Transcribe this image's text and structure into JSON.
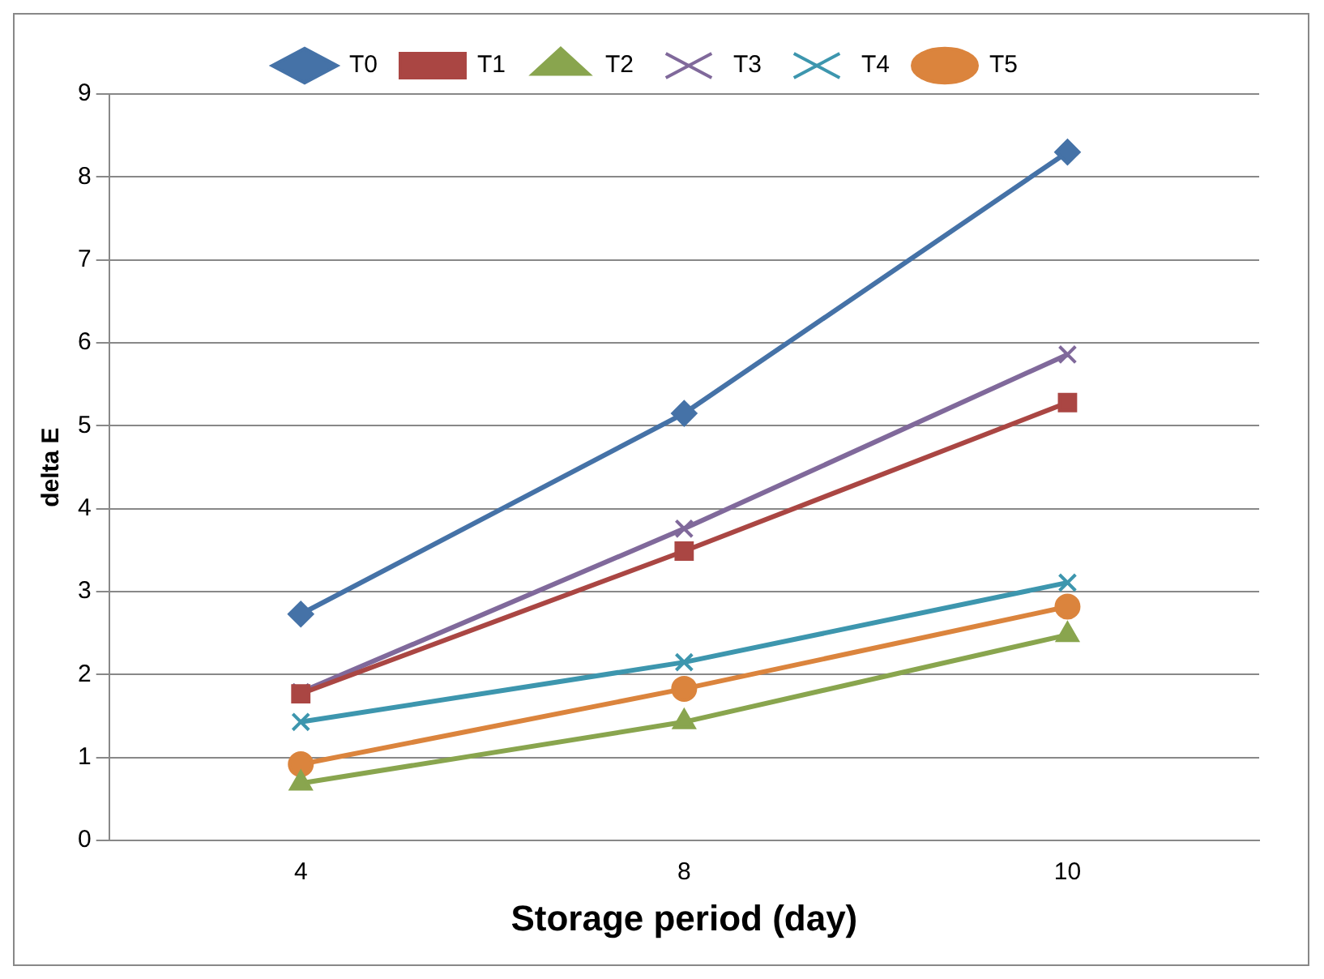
{
  "chart_data": {
    "type": "line",
    "xlabel": "Storage period (day)",
    "ylabel": "delta E",
    "categories": [
      "4",
      "8",
      "10"
    ],
    "series": [
      {
        "name": "T0",
        "color": "#4572a7",
        "marker": "diamond",
        "values": [
          2.73,
          5.15,
          8.3
        ]
      },
      {
        "name": "T1",
        "color": "#aa4643",
        "marker": "square",
        "values": [
          1.77,
          3.49,
          5.28
        ]
      },
      {
        "name": "T2",
        "color": "#89a54e",
        "marker": "triangle",
        "values": [
          0.69,
          1.43,
          2.48
        ]
      },
      {
        "name": "T3",
        "color": "#80699b",
        "marker": "cross",
        "values": [
          1.79,
          3.76,
          5.86
        ]
      },
      {
        "name": "T4",
        "color": "#3d96ae",
        "marker": "cross",
        "values": [
          1.43,
          2.15,
          3.11
        ]
      },
      {
        "name": "T5",
        "color": "#db843d",
        "marker": "circle",
        "values": [
          0.92,
          1.83,
          2.82
        ]
      }
    ],
    "ylim": [
      0,
      9
    ],
    "yticks": [
      0,
      1,
      2,
      3,
      4,
      5,
      6,
      7,
      8,
      9
    ],
    "grid": "y",
    "legend": "top"
  }
}
